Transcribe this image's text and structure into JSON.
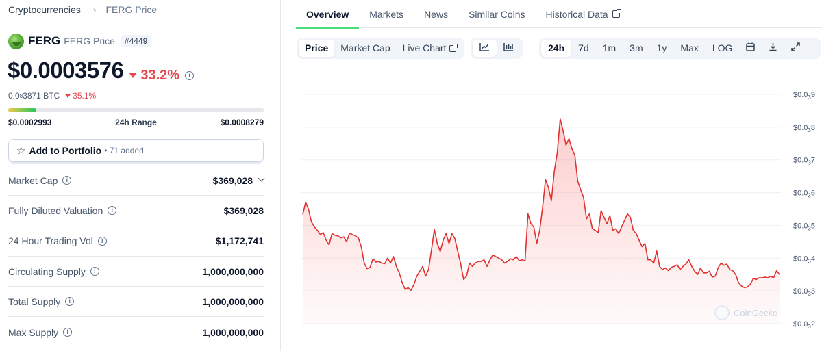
{
  "breadcrumb": {
    "root": "Cryptocurrencies",
    "current": "FERG Price"
  },
  "coin": {
    "symbol": "FERG",
    "name": "FERG Price",
    "rank": "#4449",
    "price": "$0.0003576",
    "change_24h": "33.2%",
    "btc_prefix": "0.0",
    "btc_sub": "8",
    "btc_rest": "3871 BTC",
    "btc_change": "35.1%",
    "range": {
      "low": "$0.0002993",
      "label": "24h Range",
      "high": "$0.0008279",
      "position_fraction": 0.11
    }
  },
  "portfolio": {
    "label": "Add to Portfolio",
    "added": "• 71 added"
  },
  "stats": [
    {
      "label": "Market Cap",
      "value": "$369,028"
    },
    {
      "label": "Fully Diluted Valuation",
      "value": "$369,028"
    },
    {
      "label": "24 Hour Trading Vol",
      "value": "$1,172,741"
    },
    {
      "label": "Circulating Supply",
      "value": "1,000,000,000"
    },
    {
      "label": "Total Supply",
      "value": "1,000,000,000"
    },
    {
      "label": "Max Supply",
      "value": "1,000,000,000"
    }
  ],
  "tabs": [
    "Overview",
    "Markets",
    "News",
    "Similar Coins",
    "Historical Data"
  ],
  "chart_toolbar": {
    "modes": [
      "Price",
      "Market Cap",
      "Live Chart"
    ],
    "times": [
      "24h",
      "7d",
      "1m",
      "3m",
      "1y",
      "Max",
      "LOG"
    ],
    "icons": [
      "line-chart-icon",
      "candlestick-icon",
      "calendar-icon",
      "download-icon",
      "expand-icon"
    ]
  },
  "watermark": "CoinGecko",
  "colors": {
    "accent_green": "#4ade80",
    "negative_red": "#e5484d",
    "line": "#e03131"
  },
  "chart_data": {
    "type": "area",
    "title": "",
    "xlabel": "",
    "ylabel": "",
    "y_ticks": [
      {
        "base": "$0.0",
        "sub": "3",
        "digit": "9",
        "value": 0.0009
      },
      {
        "base": "$0.0",
        "sub": "3",
        "digit": "8",
        "value": 0.0008
      },
      {
        "base": "$0.0",
        "sub": "3",
        "digit": "7",
        "value": 0.0007
      },
      {
        "base": "$0.0",
        "sub": "3",
        "digit": "6",
        "value": 0.0006
      },
      {
        "base": "$0.0",
        "sub": "3",
        "digit": "5",
        "value": 0.0005
      },
      {
        "base": "$0.0",
        "sub": "3",
        "digit": "4",
        "value": 0.0004
      },
      {
        "base": "$0.0",
        "sub": "3",
        "digit": "3",
        "value": 0.0003
      },
      {
        "base": "$0.0",
        "sub": "3",
        "digit": "2",
        "value": 0.0002
      }
    ],
    "ylim": [
      0.0002,
      0.0009
    ],
    "grid": true,
    "series": [
      {
        "values": [
          0.000533,
          0.000572,
          0.000548,
          0.00051,
          0.000495,
          0.000485,
          0.000472,
          0.000478,
          0.000455,
          0.000441,
          0.000475,
          0.00047,
          0.000468,
          0.000462,
          0.000465,
          0.00045,
          0.000476,
          0.000472,
          0.000468,
          0.000462,
          0.000435,
          0.000385,
          0.000368,
          0.000372,
          0.000398,
          0.000388,
          0.00039,
          0.000385,
          0.000383,
          0.0004,
          0.000385,
          0.000405,
          0.000375,
          0.000355,
          0.000325,
          0.000305,
          0.00031,
          0.000302,
          0.00032,
          0.000345,
          0.00036,
          0.000375,
          0.000345,
          0.000365,
          0.000425,
          0.000488,
          0.000445,
          0.00042,
          0.000455,
          0.000475,
          0.000445,
          0.000475,
          0.00046,
          0.00042,
          0.000382,
          0.000335,
          0.000345,
          0.000385,
          0.000375,
          0.000385,
          0.00039,
          0.00039,
          0.000395,
          0.000375,
          0.000395,
          0.00041,
          0.000405,
          0.0004,
          0.000395,
          0.000385,
          0.00039,
          0.000398,
          0.000395,
          0.000405,
          0.000392,
          0.000395,
          0.000392,
          0.000535,
          0.000505,
          0.000495,
          0.000445,
          0.000485,
          0.000555,
          0.00064,
          0.000615,
          0.000575,
          0.000665,
          0.000722,
          0.000825,
          0.00079,
          0.000745,
          0.000765,
          0.000735,
          0.000715,
          0.000635,
          0.00061,
          0.000585,
          0.00052,
          0.000535,
          0.00049,
          0.000485,
          0.000478,
          0.000545,
          0.000525,
          0.000505,
          0.00053,
          0.000485,
          0.00049,
          0.000475,
          0.000495,
          0.000515,
          0.000535,
          0.000525,
          0.000485,
          0.000475,
          0.000455,
          0.000435,
          0.000445,
          0.000395,
          0.000395,
          0.000385,
          0.000422,
          0.000375,
          0.000365,
          0.00037,
          0.000362,
          0.000372,
          0.000375,
          0.00038,
          0.000365,
          0.000375,
          0.000382,
          0.000395,
          0.000375,
          0.00036,
          0.00035,
          0.00037,
          0.000355,
          0.000355,
          0.00036,
          0.000342,
          0.000345,
          0.00037,
          0.000385,
          0.000378,
          0.000382,
          0.000365,
          0.000362,
          0.00035,
          0.000325,
          0.000315,
          0.00031,
          0.000312,
          0.00032,
          0.000338,
          0.000335,
          0.00034,
          0.00034,
          0.000342,
          0.00034,
          0.000345,
          0.00034,
          0.000362,
          0.00035
        ]
      }
    ]
  }
}
